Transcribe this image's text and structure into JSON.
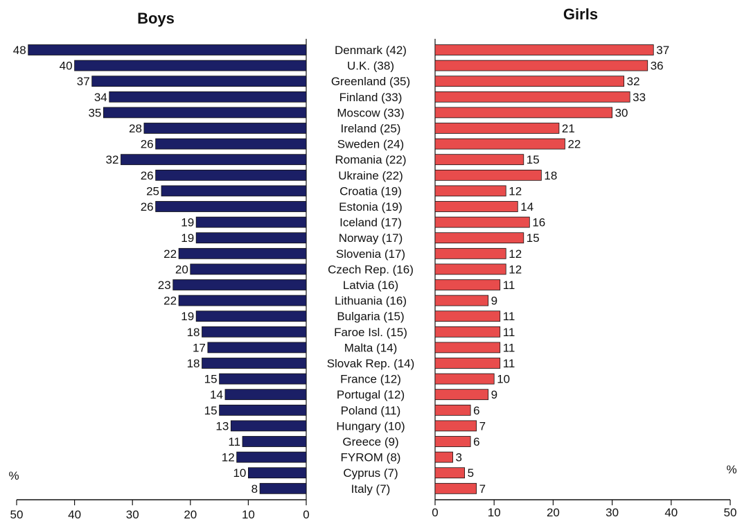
{
  "chart_data": {
    "type": "bar",
    "panels": {
      "left_title": "Boys",
      "right_title": "Girls"
    },
    "categories": [
      "Denmark (42)",
      "U.K. (38)",
      "Greenland (35)",
      "Finland (33)",
      "Moscow (33)",
      "Ireland (25)",
      "Sweden (24)",
      "Romania (22)",
      "Ukraine (22)",
      "Croatia (19)",
      "Estonia (19)",
      "Iceland (17)",
      "Norway (17)",
      "Slovenia (17)",
      "Czech Rep. (16)",
      "Latvia (16)",
      "Lithuania (16)",
      "Bulgaria (15)",
      "Faroe Isl. (15)",
      "Malta (14)",
      "Slovak Rep. (14)",
      "France (12)",
      "Portugal (12)",
      "Poland (11)",
      "Hungary (10)",
      "Greece (9)",
      "FYROM (8)",
      "Cyprus (7)",
      "Italy (7)"
    ],
    "series": [
      {
        "name": "Boys",
        "values": [
          48,
          40,
          37,
          34,
          35,
          28,
          26,
          32,
          26,
          25,
          26,
          19,
          19,
          22,
          20,
          23,
          22,
          19,
          18,
          17,
          18,
          15,
          14,
          15,
          13,
          11,
          12,
          10,
          8
        ],
        "color": "#1b1f66"
      },
      {
        "name": "Girls",
        "values": [
          37,
          36,
          32,
          33,
          30,
          21,
          22,
          15,
          18,
          12,
          14,
          16,
          15,
          12,
          12,
          11,
          9,
          11,
          11,
          11,
          11,
          10,
          9,
          6,
          7,
          6,
          3,
          5,
          7
        ],
        "color": "#e84c4c"
      }
    ],
    "xlim": [
      0,
      50
    ],
    "ticks": [
      0,
      10,
      20,
      30,
      40,
      50
    ],
    "unit": "%"
  }
}
